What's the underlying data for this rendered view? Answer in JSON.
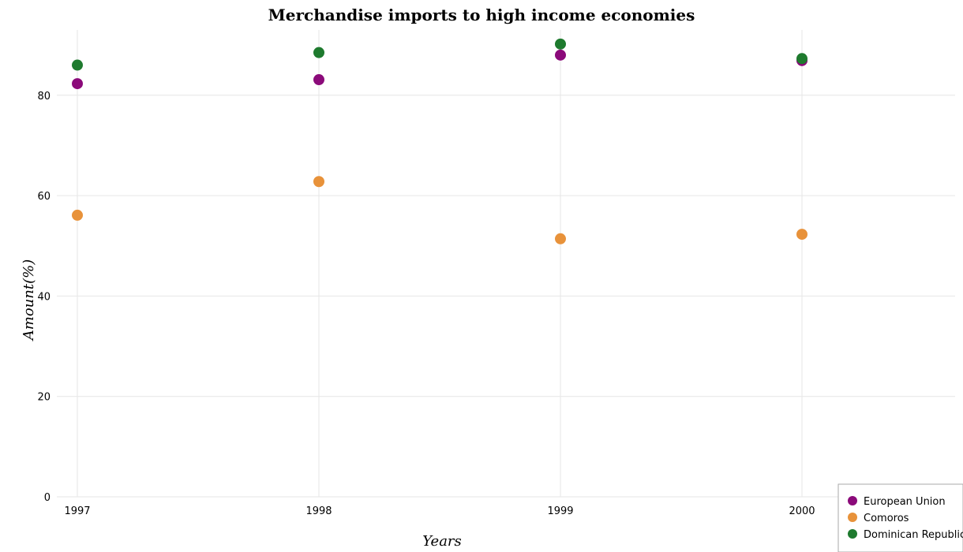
{
  "chart_data": {
    "type": "scatter",
    "title": "Merchandise imports to high income economies",
    "xlabel": "Years",
    "ylabel": "Amount(%)",
    "categories": [
      "1997",
      "1998",
      "1999",
      "2000"
    ],
    "ylim": [
      0,
      93
    ],
    "yticks": [
      0,
      20,
      40,
      60,
      80
    ],
    "grid": true,
    "legend_position": "bottom-right",
    "series": [
      {
        "name": "European Union",
        "color": "#8b0a7a",
        "values": [
          82.3,
          83.1,
          88.0,
          86.9
        ]
      },
      {
        "name": "Comoros",
        "color": "#e8923a",
        "values": [
          56.1,
          62.8,
          51.4,
          52.3
        ]
      },
      {
        "name": "Dominican Republic",
        "color": "#1e7a2e",
        "values": [
          86.0,
          88.5,
          90.2,
          87.3
        ]
      }
    ]
  }
}
